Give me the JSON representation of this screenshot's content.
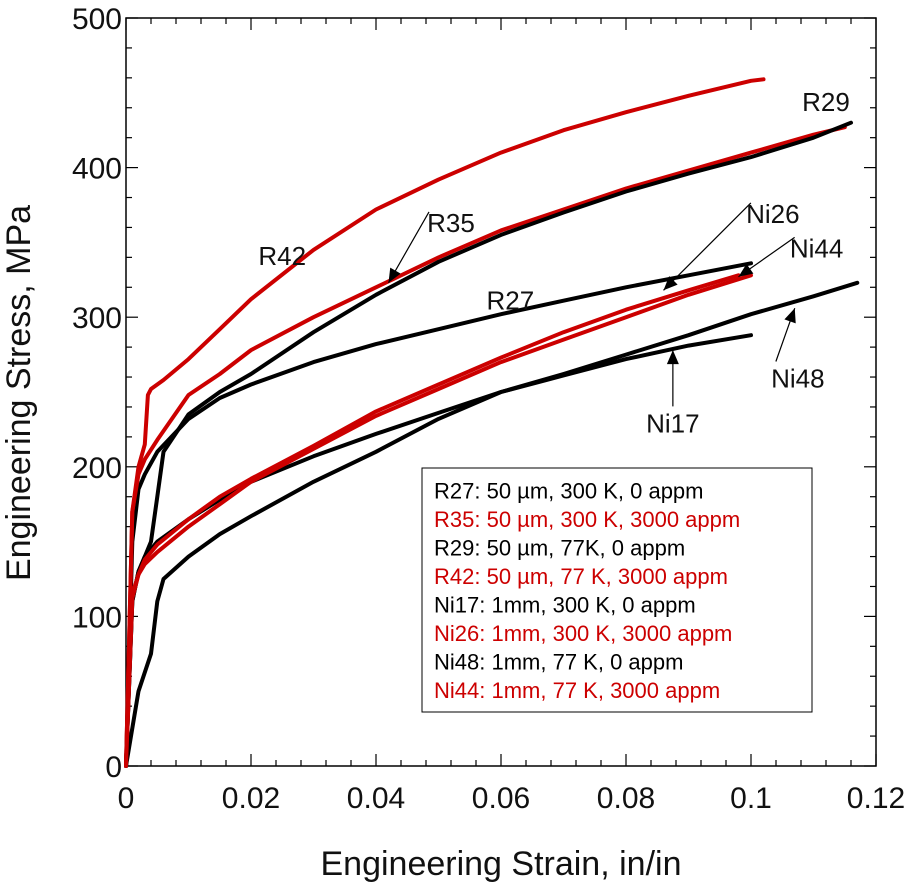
{
  "chart_data": {
    "type": "line",
    "title": "",
    "xlabel": "Engineering Strain, in/in",
    "ylabel": "Engineering Stress, MPa",
    "xlim": [
      0,
      0.12
    ],
    "ylim": [
      0,
      500
    ],
    "xticks": [
      0,
      0.02,
      0.04,
      0.06,
      0.08,
      0.1,
      0.12
    ],
    "xtick_labels": [
      "0",
      "0.02",
      "0.04",
      "0.06",
      "0.08",
      "0.1",
      "0.12"
    ],
    "yticks": [
      0,
      100,
      200,
      300,
      400,
      500
    ],
    "ytick_labels": [
      "0",
      "100",
      "200",
      "300",
      "400",
      "500"
    ],
    "grid": false,
    "legend_position": "bottom-right",
    "colors": {
      "unirradiated": "#000000",
      "irradiated": "#cc0000"
    },
    "series": [
      {
        "name": "R27",
        "label": "R27: 50 µm, 300 K, 0 appm",
        "color": "#000000",
        "x": [
          0,
          0.001,
          0.002,
          0.003,
          0.005,
          0.01,
          0.015,
          0.02,
          0.03,
          0.04,
          0.05,
          0.06,
          0.07,
          0.08,
          0.09,
          0.1
        ],
        "y": [
          0,
          150,
          185,
          195,
          210,
          232,
          246,
          255,
          270,
          282,
          292,
          302,
          311,
          320,
          328,
          336
        ]
      },
      {
        "name": "R35",
        "label": "R35: 50 µm, 300 K, 3000 appm",
        "color": "#cc0000",
        "x": [
          0,
          0.001,
          0.002,
          0.003,
          0.005,
          0.01,
          0.015,
          0.02,
          0.03,
          0.04,
          0.05,
          0.06,
          0.07,
          0.08,
          0.09,
          0.1,
          0.11,
          0.115
        ],
        "y": [
          0,
          170,
          195,
          205,
          218,
          248,
          262,
          278,
          300,
          320,
          340,
          358,
          372,
          386,
          398,
          410,
          422,
          427
        ]
      },
      {
        "name": "R29",
        "label": "R29: 50 µm, 77K, 0 appm",
        "color": "#000000",
        "x": [
          0,
          0.001,
          0.002,
          0.003,
          0.004,
          0.005,
          0.006,
          0.01,
          0.015,
          0.02,
          0.03,
          0.04,
          0.05,
          0.06,
          0.07,
          0.08,
          0.09,
          0.1,
          0.11,
          0.116
        ],
        "y": [
          0,
          110,
          130,
          140,
          150,
          180,
          210,
          235,
          250,
          262,
          290,
          315,
          337,
          355,
          370,
          384,
          396,
          407,
          420,
          430
        ]
      },
      {
        "name": "R42",
        "label": "R42: 50 µm, 77 K, 3000 appm",
        "color": "#cc0000",
        "x": [
          0,
          0.001,
          0.002,
          0.003,
          0.0035,
          0.004,
          0.006,
          0.01,
          0.015,
          0.02,
          0.03,
          0.04,
          0.05,
          0.06,
          0.07,
          0.08,
          0.09,
          0.1,
          0.102
        ],
        "y": [
          0,
          170,
          200,
          215,
          248,
          252,
          258,
          272,
          292,
          312,
          345,
          372,
          392,
          410,
          425,
          437,
          448,
          458,
          459
        ]
      },
      {
        "name": "Ni17",
        "label": "Ni17: 1mm, 300 K, 0 appm",
        "color": "#000000",
        "x": [
          0,
          0.001,
          0.002,
          0.003,
          0.005,
          0.01,
          0.015,
          0.02,
          0.03,
          0.04,
          0.05,
          0.06,
          0.07,
          0.08,
          0.09,
          0.1
        ],
        "y": [
          0,
          110,
          130,
          140,
          150,
          165,
          178,
          190,
          207,
          222,
          236,
          250,
          261,
          272,
          281,
          288
        ]
      },
      {
        "name": "Ni26",
        "label": "Ni26: 1mm, 300 K, 3000 appm",
        "color": "#cc0000",
        "x": [
          0,
          0.001,
          0.002,
          0.003,
          0.005,
          0.01,
          0.015,
          0.02,
          0.03,
          0.04,
          0.05,
          0.06,
          0.07,
          0.08,
          0.09,
          0.1
        ],
        "y": [
          0,
          115,
          128,
          135,
          143,
          160,
          175,
          190,
          212,
          234,
          252,
          270,
          285,
          300,
          315,
          328
        ]
      },
      {
        "name": "Ni48",
        "label": "Ni48: 1mm, 77 K, 0 appm",
        "color": "#000000",
        "x": [
          0,
          0.002,
          0.004,
          0.005,
          0.006,
          0.01,
          0.015,
          0.02,
          0.03,
          0.04,
          0.05,
          0.06,
          0.07,
          0.08,
          0.09,
          0.1,
          0.11,
          0.117
        ],
        "y": [
          0,
          50,
          75,
          110,
          125,
          140,
          155,
          167,
          190,
          210,
          232,
          250,
          262,
          275,
          288,
          302,
          314,
          323
        ]
      },
      {
        "name": "Ni44",
        "label": "Ni44: 1mm, 77 K, 3000 appm",
        "color": "#cc0000",
        "x": [
          0,
          0.001,
          0.002,
          0.003,
          0.005,
          0.01,
          0.015,
          0.02,
          0.03,
          0.04,
          0.05,
          0.06,
          0.07,
          0.08,
          0.09,
          0.098
        ],
        "y": [
          0,
          112,
          128,
          138,
          148,
          165,
          180,
          192,
          214,
          237,
          255,
          273,
          290,
          305,
          318,
          328
        ]
      }
    ],
    "annotations": [
      {
        "text": "R42",
        "x": 0.025,
        "y": 335,
        "arrow": false
      },
      {
        "text": "R35",
        "x": 0.052,
        "y": 357,
        "arrow": true,
        "arrow_x": 0.042,
        "arrow_y": 323
      },
      {
        "text": "R29",
        "x": 0.112,
        "y": 438,
        "arrow": false
      },
      {
        "text": "Ni26",
        "x": 0.1035,
        "y": 363,
        "arrow": true,
        "arrow_x": 0.086,
        "arrow_y": 318
      },
      {
        "text": "Ni44",
        "x": 0.1105,
        "y": 340,
        "arrow": true,
        "arrow_x": 0.098,
        "arrow_y": 327
      },
      {
        "text": "R27",
        "x": 0.0615,
        "y": 305,
        "arrow": false
      },
      {
        "text": "Ni48",
        "x": 0.1075,
        "y": 253,
        "arrow": true,
        "arrow_x": 0.107,
        "arrow_y": 306
      },
      {
        "text": "Ni17",
        "x": 0.0875,
        "y": 223,
        "arrow": true,
        "arrow_x": 0.0875,
        "arrow_y": 278
      }
    ]
  }
}
